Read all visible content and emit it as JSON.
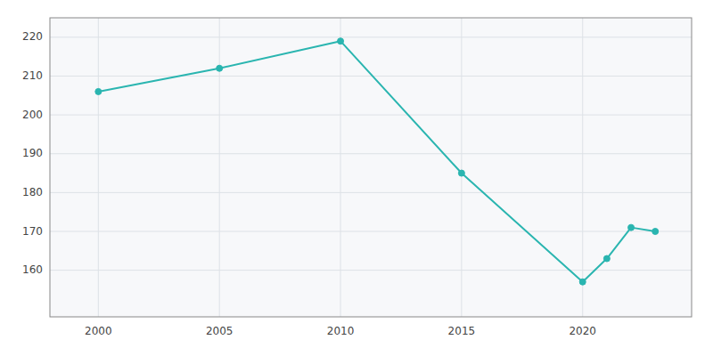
{
  "chart_data": {
    "type": "line",
    "x": [
      2000,
      2005,
      2010,
      2015,
      2020,
      2021,
      2022,
      2023
    ],
    "values": [
      206,
      212,
      219,
      185,
      157,
      163,
      171,
      170
    ],
    "color": "#2ab5b0",
    "marker": "circle",
    "xlim": [
      1998,
      2024.5
    ],
    "xticks": [
      2000,
      2005,
      2010,
      2015,
      2020
    ],
    "ylim": [
      148,
      225
    ],
    "yticks": [
      160,
      170,
      180,
      190,
      200,
      210,
      220
    ],
    "grid": true
  }
}
